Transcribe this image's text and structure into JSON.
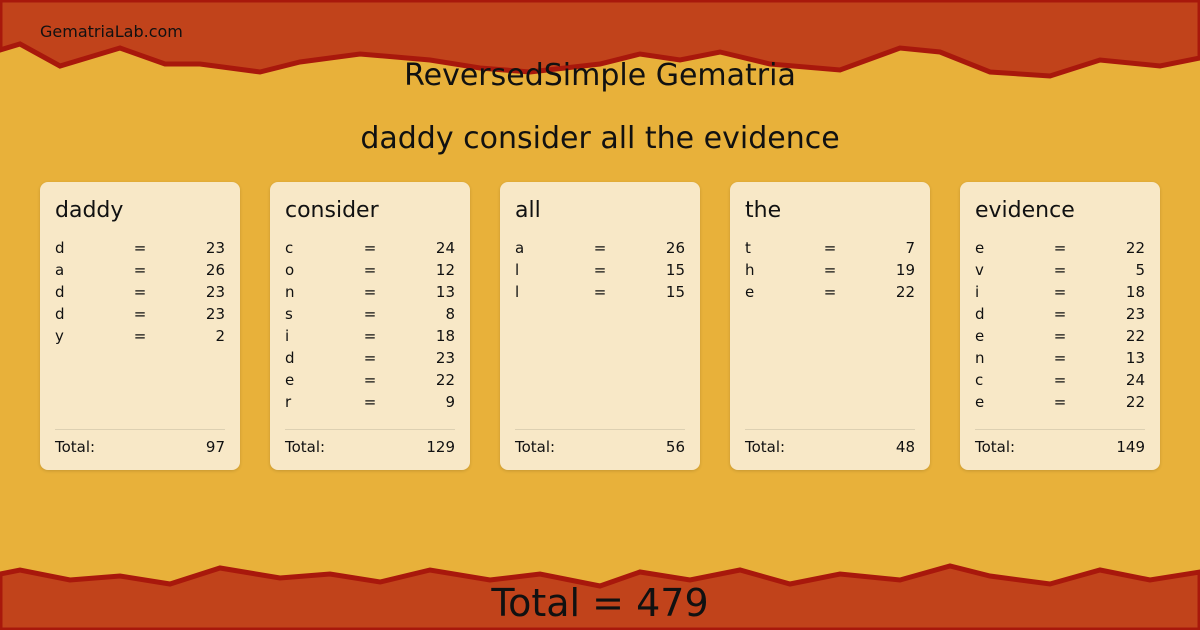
{
  "site": "GematriaLab.com",
  "title": "ReversedSimple Gematria",
  "phrase": "daddy consider all the evidence",
  "colors": {
    "band": "#c1431b",
    "band_edge": "#a8180c",
    "paper": "#e8b13a",
    "card": "#f8e8c7"
  },
  "total_label": "Total:",
  "eq": "=",
  "words": [
    {
      "word": "daddy",
      "letters": [
        [
          "d",
          23
        ],
        [
          "a",
          26
        ],
        [
          "d",
          23
        ],
        [
          "d",
          23
        ],
        [
          "y",
          2
        ]
      ],
      "total": 97
    },
    {
      "word": "consider",
      "letters": [
        [
          "c",
          24
        ],
        [
          "o",
          12
        ],
        [
          "n",
          13
        ],
        [
          "s",
          8
        ],
        [
          "i",
          18
        ],
        [
          "d",
          23
        ],
        [
          "e",
          22
        ],
        [
          "r",
          9
        ]
      ],
      "total": 129
    },
    {
      "word": "all",
      "letters": [
        [
          "a",
          26
        ],
        [
          "l",
          15
        ],
        [
          "l",
          15
        ]
      ],
      "total": 56
    },
    {
      "word": "the",
      "letters": [
        [
          "t",
          7
        ],
        [
          "h",
          19
        ],
        [
          "e",
          22
        ]
      ],
      "total": 48
    },
    {
      "word": "evidence",
      "letters": [
        [
          "e",
          22
        ],
        [
          "v",
          5
        ],
        [
          "i",
          18
        ],
        [
          "d",
          23
        ],
        [
          "e",
          22
        ],
        [
          "n",
          13
        ],
        [
          "c",
          24
        ],
        [
          "e",
          22
        ]
      ],
      "total": 149
    }
  ],
  "grand_total": "Total  = 479"
}
